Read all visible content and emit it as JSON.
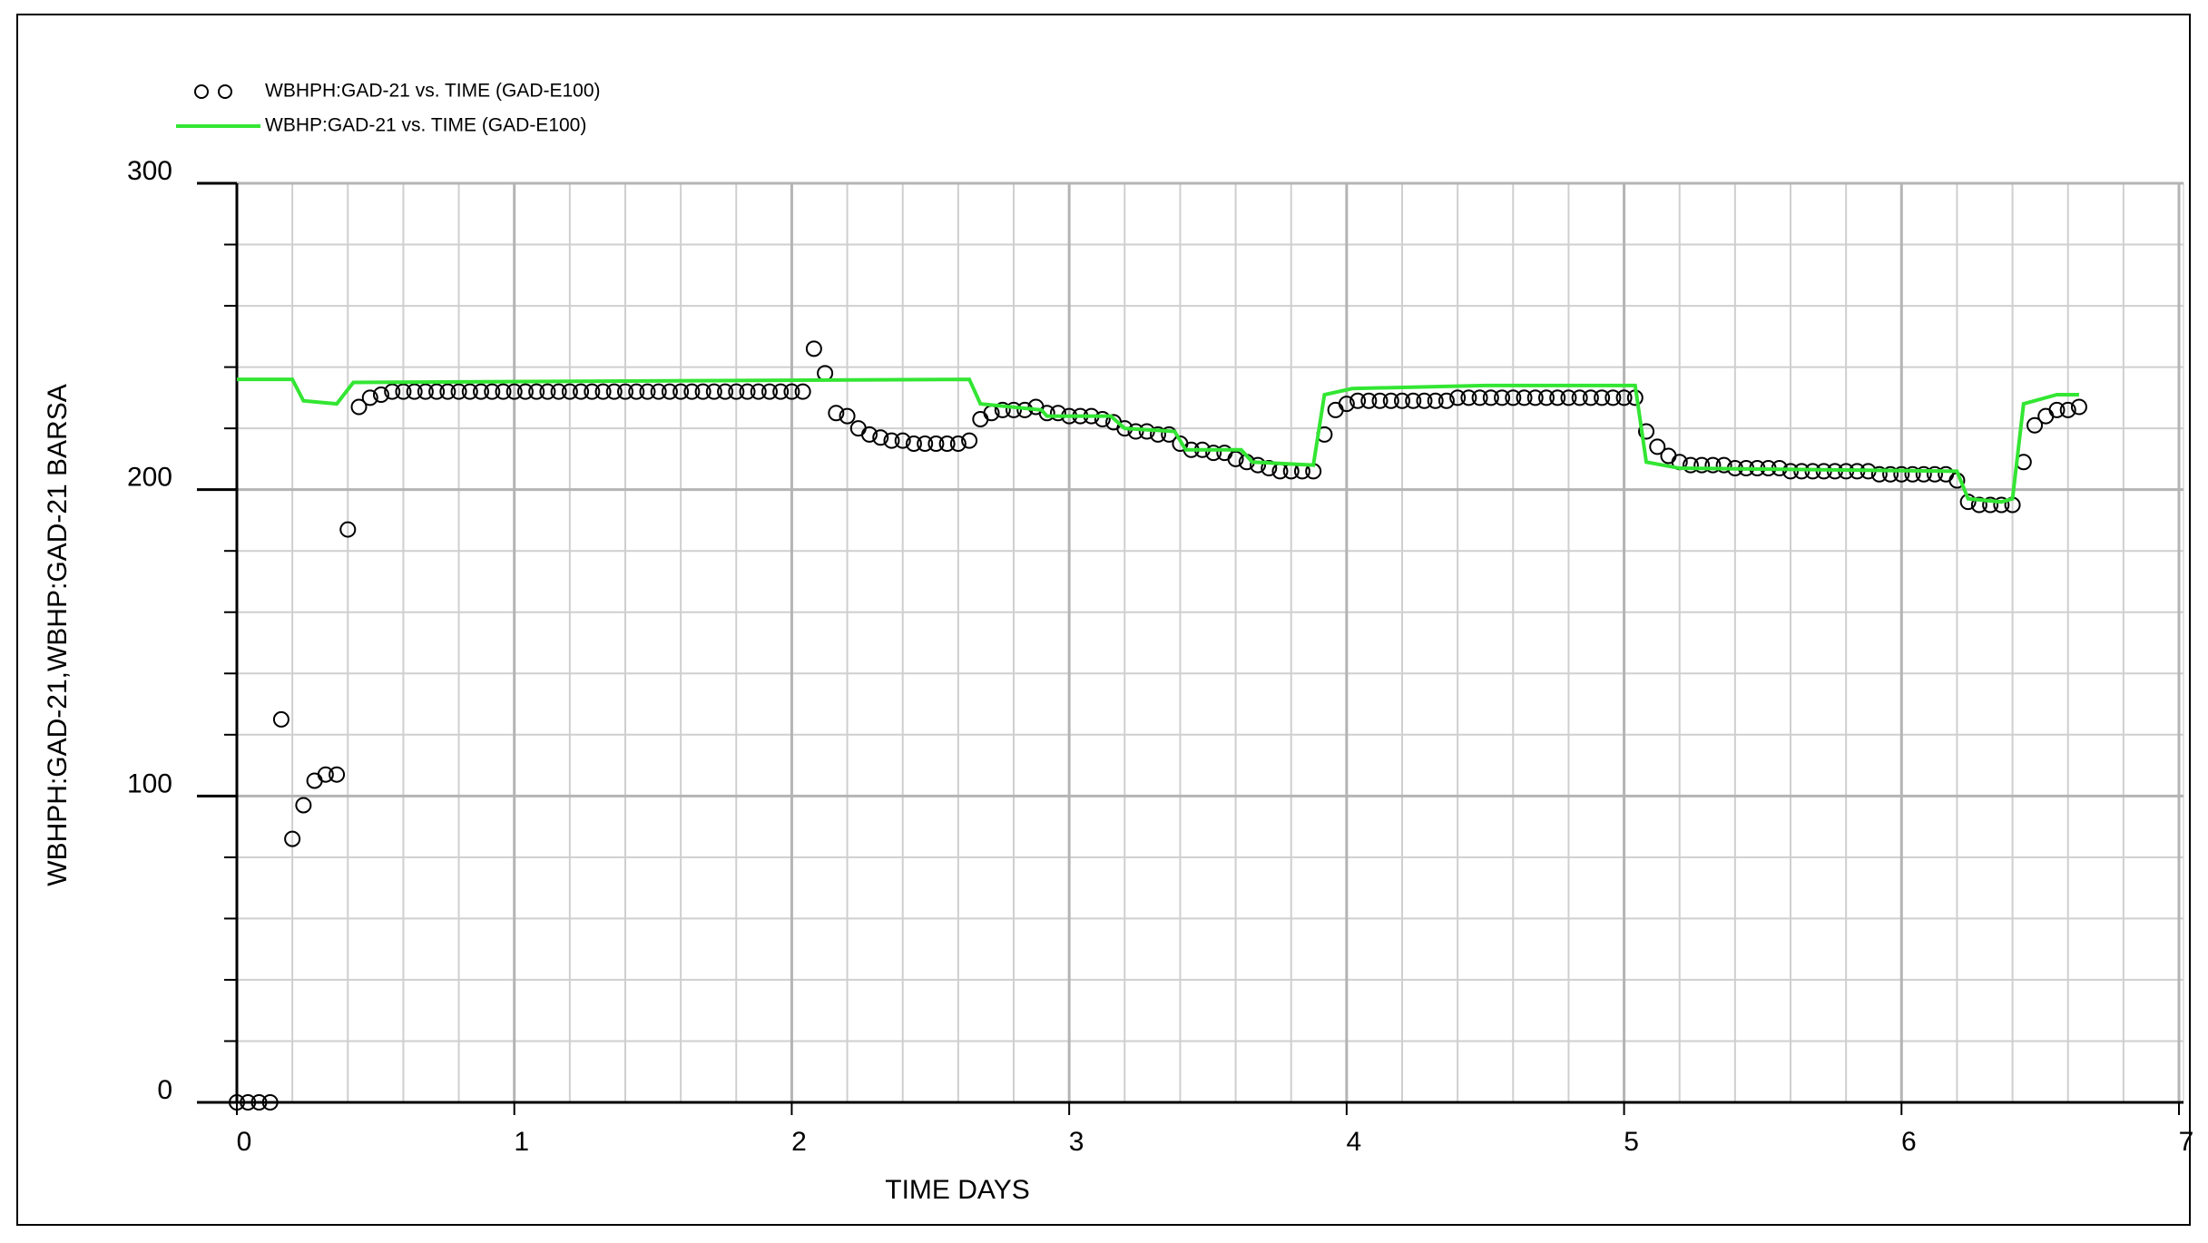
{
  "chart_data": {
    "type": "scatter",
    "xlabel": "TIME   DAYS",
    "ylabel": "WBHPH:GAD-21,WBHP:GAD-21   BARSA",
    "xlim": [
      0,
      7
    ],
    "xticks": [
      0,
      1,
      2,
      3,
      4,
      5,
      6,
      7
    ],
    "xminorticks": [
      0.2,
      0.4,
      0.6,
      0.8,
      1.2,
      1.4,
      1.6,
      1.8,
      2.2,
      2.4,
      2.6,
      2.8,
      3.2,
      3.4,
      3.6,
      3.8,
      4.2,
      4.4,
      4.6,
      4.8,
      5.2,
      5.4,
      5.6,
      5.8,
      6.2,
      6.4,
      6.6,
      6.8
    ],
    "ylim": [
      0,
      300
    ],
    "yticks": [
      0,
      100,
      200,
      300
    ],
    "yminorticks": [
      20,
      40,
      60,
      80,
      120,
      140,
      160,
      180,
      220,
      240,
      260,
      280
    ],
    "grid": true,
    "legend": "top-left",
    "series": [
      {
        "name": "WBHPH:GAD-21 vs. TIME (GAD-E100)",
        "kind": "markers",
        "color": "#000000",
        "x": [
          0,
          0.04,
          0.08,
          0.12,
          0.16,
          0.2,
          0.24,
          0.28,
          0.32,
          0.36,
          0.4,
          0.44,
          0.48,
          0.52,
          0.56,
          0.6,
          0.64,
          0.68,
          0.72,
          0.76,
          0.8,
          0.84,
          0.88,
          0.92,
          0.96,
          1,
          1.04,
          1.08,
          1.12,
          1.16,
          1.2,
          1.24,
          1.28,
          1.32,
          1.36,
          1.4,
          1.44,
          1.48,
          1.52,
          1.56,
          1.6,
          1.64,
          1.68,
          1.72,
          1.76,
          1.8,
          1.84,
          1.88,
          1.92,
          1.96,
          2,
          2.04,
          2.08,
          2.12,
          2.16,
          2.2,
          2.24,
          2.28,
          2.32,
          2.36,
          2.4,
          2.44,
          2.48,
          2.52,
          2.56,
          2.6,
          2.64,
          2.68,
          2.72,
          2.76,
          2.8,
          2.84,
          2.88,
          2.92,
          2.96,
          3,
          3.04,
          3.08,
          3.12,
          3.16,
          3.2,
          3.24,
          3.28,
          3.32,
          3.36,
          3.4,
          3.44,
          3.48,
          3.52,
          3.56,
          3.6,
          3.64,
          3.68,
          3.72,
          3.76,
          3.8,
          3.84,
          3.88,
          3.92,
          3.96,
          4,
          4.04,
          4.08,
          4.12,
          4.16,
          4.2,
          4.24,
          4.28,
          4.32,
          4.36,
          4.4,
          4.44,
          4.48,
          4.52,
          4.56,
          4.6,
          4.64,
          4.68,
          4.72,
          4.76,
          4.8,
          4.84,
          4.88,
          4.92,
          4.96,
          5,
          5.04,
          5.08,
          5.12,
          5.16,
          5.2,
          5.24,
          5.28,
          5.32,
          5.36,
          5.4,
          5.44,
          5.48,
          5.52,
          5.56,
          5.6,
          5.64,
          5.68,
          5.72,
          5.76,
          5.8,
          5.84,
          5.88,
          5.92,
          5.96,
          6,
          6.04,
          6.08,
          6.12,
          6.16,
          6.2,
          6.24,
          6.28,
          6.32,
          6.36,
          6.4,
          6.44,
          6.48,
          6.52,
          6.56,
          6.6,
          6.64
        ],
        "values": [
          0,
          0,
          0,
          0,
          125,
          86,
          97,
          105,
          107,
          107,
          187,
          227,
          230,
          231,
          232,
          232,
          232,
          232,
          232,
          232,
          232,
          232,
          232,
          232,
          232,
          232,
          232,
          232,
          232,
          232,
          232,
          232,
          232,
          232,
          232,
          232,
          232,
          232,
          232,
          232,
          232,
          232,
          232,
          232,
          232,
          232,
          232,
          232,
          232,
          232,
          232,
          232,
          246,
          238,
          225,
          224,
          220,
          218,
          217,
          216,
          216,
          215,
          215,
          215,
          215,
          215,
          216,
          223,
          225,
          226,
          226,
          226,
          227,
          225,
          225,
          224,
          224,
          224,
          223,
          222,
          220,
          219,
          219,
          218,
          218,
          215,
          213,
          213,
          212,
          212,
          210,
          209,
          208,
          207,
          206,
          206,
          206,
          206,
          218,
          226,
          228,
          229,
          229,
          229,
          229,
          229,
          229,
          229,
          229,
          229,
          230,
          230,
          230,
          230,
          230,
          230,
          230,
          230,
          230,
          230,
          230,
          230,
          230,
          230,
          230,
          230,
          230,
          219,
          214,
          211,
          209,
          208,
          208,
          208,
          208,
          207,
          207,
          207,
          207,
          207,
          206,
          206,
          206,
          206,
          206,
          206,
          206,
          206,
          205,
          205,
          205,
          205,
          205,
          205,
          205,
          203,
          196,
          195,
          195,
          195,
          195,
          209,
          221,
          224,
          226,
          226,
          227
        ]
      },
      {
        "name": "WBHP:GAD-21 vs. TIME (GAD-E100)",
        "kind": "line",
        "color": "#33e633",
        "x": [
          0,
          0.2,
          0.24,
          0.36,
          0.42,
          2.64,
          2.68,
          2.9,
          2.92,
          3.15,
          3.2,
          3.38,
          3.42,
          3.62,
          3.66,
          3.88,
          3.92,
          4.02,
          4.5,
          5.04,
          5.08,
          5.2,
          6.2,
          6.24,
          6.36,
          6.4,
          6.44,
          6.56,
          6.64
        ],
        "values": [
          236,
          236,
          229,
          228,
          235,
          236,
          228,
          226,
          224,
          224,
          220,
          219,
          213,
          213,
          209,
          208,
          231,
          233,
          234,
          234,
          209,
          207,
          206,
          197,
          196,
          197,
          228,
          231,
          231
        ]
      }
    ]
  }
}
